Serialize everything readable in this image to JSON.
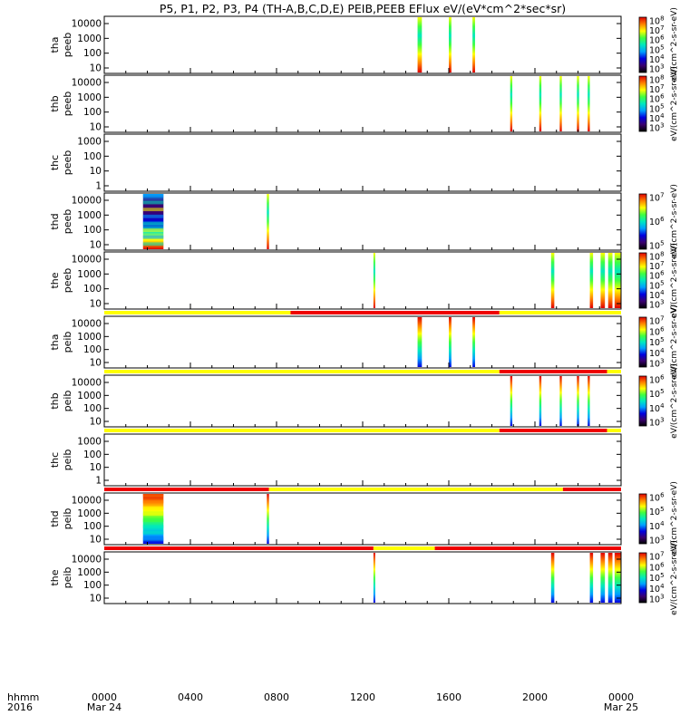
{
  "chart_data": {
    "type": "heatmap",
    "title": "P5, P1, P2, P3, P4 (TH-A,B,C,D,E) PEIB,PEEB EFlux eV/(eV*cm^2*sec*sr)",
    "x_axis": {
      "row_label_1": "hhmm",
      "row_label_2": "2016",
      "ticks": [
        {
          "t": 0,
          "label": "0000",
          "sub": "Mar 24"
        },
        {
          "t": 4,
          "label": "0400",
          "sub": ""
        },
        {
          "t": 8,
          "label": "0800",
          "sub": ""
        },
        {
          "t": 12,
          "label": "1200",
          "sub": ""
        },
        {
          "t": 16,
          "label": "1600",
          "sub": ""
        },
        {
          "t": 20,
          "label": "2000",
          "sub": ""
        },
        {
          "t": 24,
          "label": "0000",
          "sub": "Mar 25"
        }
      ],
      "range_hours": [
        0,
        24
      ]
    },
    "panels": [
      {
        "probe": "tha",
        "instrument": "peeb",
        "ylabel_1": "tha",
        "ylabel_2": "peeb",
        "y_ticks": [
          "10000",
          "1000",
          "100",
          "10"
        ],
        "y_range_log": [
          0.75,
          4.6
        ],
        "status_bar": null,
        "bursts": [
          [
            14.55,
            14.75
          ],
          [
            16.0,
            16.12
          ],
          [
            17.1,
            17.22
          ]
        ],
        "colorbar": {
          "ticks": [
            "10^8",
            "10^7",
            "10^6",
            "10^5",
            "10^4",
            "10^3"
          ],
          "label": "eV/(cm^2-s-sr-eV)"
        }
      },
      {
        "probe": "thb",
        "instrument": "peeb",
        "ylabel_1": "thb",
        "ylabel_2": "peeb",
        "y_ticks": [
          "10000",
          "1000",
          "100",
          "10"
        ],
        "y_range_log": [
          0.75,
          4.6
        ],
        "status_bar": null,
        "bursts": [
          [
            18.85,
            18.95
          ],
          [
            20.2,
            20.3
          ],
          [
            21.15,
            21.25
          ],
          [
            21.95,
            22.05
          ],
          [
            22.45,
            22.55
          ]
        ],
        "colorbar": {
          "ticks": [
            "10^8",
            "10^7",
            "10^6",
            "10^5",
            "10^4",
            "10^3"
          ],
          "label": "eV/(cm^2-s-sr-eV)"
        }
      },
      {
        "probe": "thc",
        "instrument": "peeb",
        "ylabel_1": "thc",
        "ylabel_2": "peeb",
        "y_ticks": [
          "1000",
          "100",
          "10",
          "1"
        ],
        "y_range_log": [
          0,
          3.3
        ],
        "status_bar": null,
        "bursts": [],
        "colorbar": null
      },
      {
        "probe": "thd",
        "instrument": "peeb",
        "ylabel_1": "thd",
        "ylabel_2": "peeb",
        "y_ticks": [
          "10000",
          "1000",
          "100",
          "10"
        ],
        "y_range_log": [
          0.75,
          4.6
        ],
        "status_bar": null,
        "bursts": [
          [
            1.8,
            2.75
          ],
          [
            7.55,
            7.65
          ]
        ],
        "colorbar": {
          "ticks": [
            "10^7",
            "10^6",
            "10^5"
          ],
          "label": "eV/(cm^2-s-sr-eV)"
        }
      },
      {
        "probe": "the",
        "instrument": "peeb",
        "ylabel_1": "the",
        "ylabel_2": "peeb",
        "y_ticks": [
          "10000",
          "1000",
          "100",
          "10"
        ],
        "y_range_log": [
          0.75,
          4.6
        ],
        "status_bar": null,
        "bursts": [
          [
            12.5,
            12.56
          ],
          [
            20.75,
            20.9
          ],
          [
            22.55,
            22.7
          ],
          [
            23.05,
            23.25
          ],
          [
            23.4,
            23.6
          ],
          [
            23.7,
            24.0
          ]
        ],
        "colorbar": {
          "ticks": [
            "10^8",
            "10^7",
            "10^6",
            "10^5",
            "10^4",
            "10^3"
          ],
          "label": "eV/(cm^2-s-sr-eV)"
        }
      },
      {
        "probe": "tha",
        "instrument": "peib",
        "ylabel_1": "tha",
        "ylabel_2": "peib",
        "y_ticks": [
          "10000",
          "1000",
          "100",
          "10"
        ],
        "y_range_log": [
          0.75,
          4.6
        ],
        "status_bar": [
          [
            "yellow",
            0,
            8.65
          ],
          [
            "red",
            8.65,
            18.35
          ],
          [
            "yellow",
            18.35,
            24
          ]
        ],
        "bursts": [
          [
            14.55,
            14.75
          ],
          [
            16.0,
            16.12
          ],
          [
            17.1,
            17.22
          ]
        ],
        "colorbar": {
          "ticks": [
            "10^7",
            "10^6",
            "10^5",
            "10^4",
            "10^3"
          ],
          "label": "eV/(cm^2-s-sr-eV)"
        }
      },
      {
        "probe": "thb",
        "instrument": "peib",
        "ylabel_1": "thb",
        "ylabel_2": "peib",
        "y_ticks": [
          "10000",
          "1000",
          "100",
          "10"
        ],
        "y_range_log": [
          0.75,
          4.6
        ],
        "status_bar": [
          [
            "yellow",
            0,
            18.35
          ],
          [
            "red",
            18.35,
            23.35
          ],
          [
            "yellow",
            23.35,
            24
          ]
        ],
        "bursts": [
          [
            18.85,
            18.95
          ],
          [
            20.2,
            20.3
          ],
          [
            21.15,
            21.25
          ],
          [
            21.95,
            22.05
          ],
          [
            22.45,
            22.55
          ]
        ],
        "colorbar": {
          "ticks": [
            "10^6",
            "10^5",
            "10^4",
            "10^3"
          ],
          "label": "eV/(cm^2-s-sr-eV)"
        }
      },
      {
        "probe": "thc",
        "instrument": "peib",
        "ylabel_1": "thc",
        "ylabel_2": "peib",
        "y_ticks": [
          "1000",
          "100",
          "10",
          "1"
        ],
        "y_range_log": [
          0,
          3.3
        ],
        "status_bar": [
          [
            "yellow",
            0,
            18.35
          ],
          [
            "red",
            18.35,
            23.35
          ],
          [
            "yellow",
            23.35,
            24
          ]
        ],
        "bursts": [],
        "colorbar": null
      },
      {
        "probe": "thd",
        "instrument": "peib",
        "ylabel_1": "thd",
        "ylabel_2": "peib",
        "y_ticks": [
          "10000",
          "1000",
          "100",
          "10"
        ],
        "y_range_log": [
          0.75,
          4.6
        ],
        "status_bar": [
          [
            "red",
            0,
            7.65
          ],
          [
            "yellow",
            7.65,
            21.3
          ],
          [
            "red",
            21.3,
            24
          ]
        ],
        "bursts": [
          [
            1.8,
            2.75
          ],
          [
            7.55,
            7.65
          ]
        ],
        "colorbar": {
          "ticks": [
            "10^6",
            "10^5",
            "10^4",
            "10^3"
          ],
          "label": "eV/(cm^2-s-sr-eV)"
        }
      },
      {
        "probe": "the",
        "instrument": "peib",
        "ylabel_1": "the",
        "ylabel_2": "peib",
        "y_ticks": [
          "10000",
          "1000",
          "100",
          "10"
        ],
        "y_range_log": [
          0.75,
          4.6
        ],
        "status_bar": [
          [
            "red",
            0,
            12.5
          ],
          [
            "yellow",
            12.5,
            15.35
          ],
          [
            "red",
            15.35,
            24
          ]
        ],
        "bursts": [
          [
            12.5,
            12.56
          ],
          [
            20.75,
            20.9
          ],
          [
            22.55,
            22.7
          ],
          [
            23.05,
            23.25
          ],
          [
            23.4,
            23.6
          ],
          [
            23.7,
            24.0
          ]
        ],
        "colorbar": {
          "ticks": [
            "10^7",
            "10^6",
            "10^5",
            "10^4",
            "10^3"
          ],
          "label": "eV/(cm^2-s-sr-eV)"
        }
      }
    ],
    "colors": {
      "red": "#ee0000",
      "yellow": "#ffff00",
      "axis": "#000000"
    }
  }
}
